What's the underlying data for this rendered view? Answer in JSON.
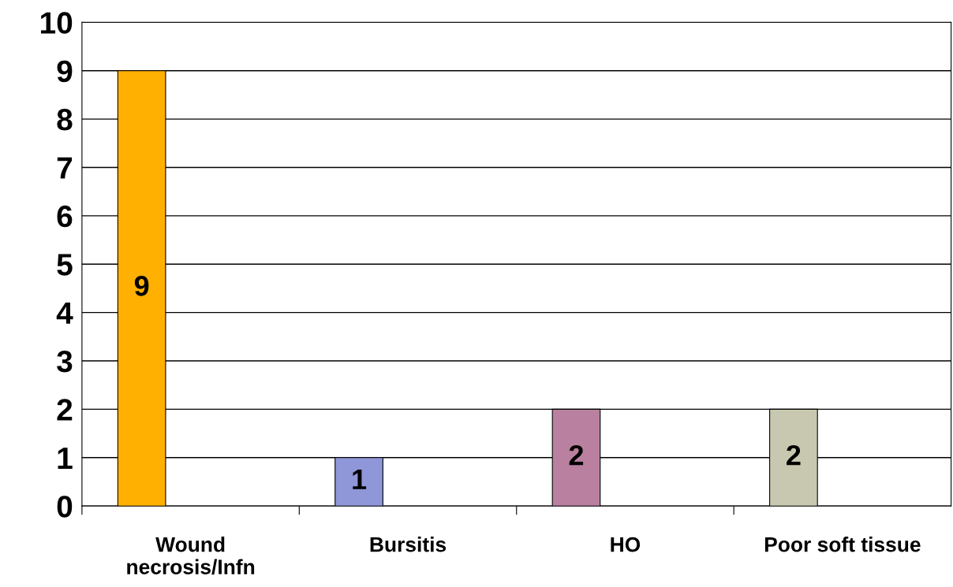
{
  "chart_data": {
    "type": "bar",
    "categories": [
      "Wound\nnecrosis/Infn",
      "Bursitis",
      "HO",
      "Poor soft tissue"
    ],
    "values": [
      9,
      1,
      2,
      2
    ],
    "colors": [
      "#ffb000",
      "#8f97d8",
      "#b9809f",
      "#c8c8b0"
    ],
    "ylim": [
      0,
      10
    ],
    "yticks": [
      0,
      1,
      2,
      3,
      4,
      5,
      6,
      7,
      8,
      9,
      10
    ],
    "grid": "y",
    "data_labels": true,
    "legend": false
  }
}
